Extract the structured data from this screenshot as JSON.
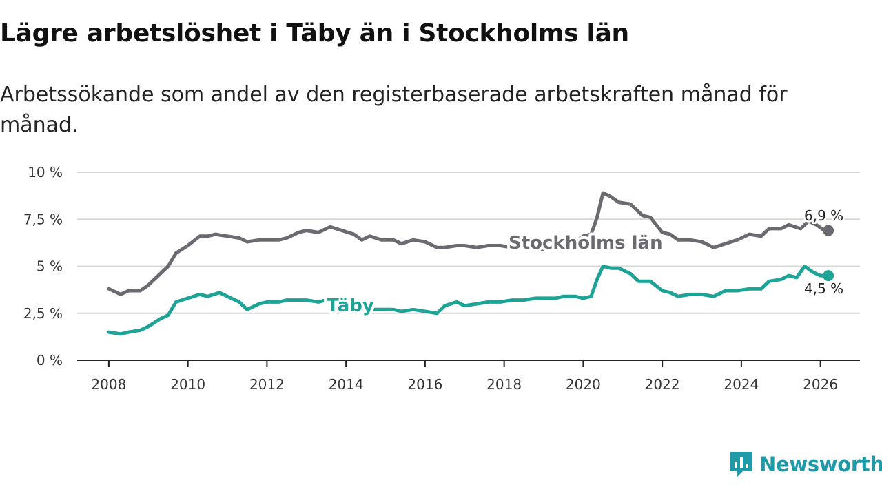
{
  "title": "Lägre arbetslöshet i Täby än i Stockholms län",
  "subtitle": "Arbetssökande som andel av den registerbaserade arbetskraften månad för månad.",
  "brand": "Newsworthy",
  "colors": {
    "stockholm": "#6b6a70",
    "taby": "#1ea397",
    "grid": "#d7d7d7",
    "axis": "#222222"
  },
  "chart_data": {
    "type": "line",
    "title": "Lägre arbetslöshet i Täby än i Stockholms län",
    "subtitle": "Arbetssökande som andel av den registerbaserade arbetskraften månad för månad.",
    "ylim": [
      0,
      10
    ],
    "xlim": [
      2007.2,
      2027.0
    ],
    "y_ticks": [
      0,
      2.5,
      5,
      7.5,
      10
    ],
    "y_tick_labels": [
      "0 %",
      "2,5 %",
      "5 %",
      "7,5 %",
      "10 %"
    ],
    "x_ticks": [
      2008,
      2010,
      2012,
      2014,
      2016,
      2018,
      2020,
      2022,
      2024,
      2026
    ],
    "x_tick_labels": [
      "2008",
      "2010",
      "2012",
      "2014",
      "2016",
      "2018",
      "2020",
      "2022",
      "2024",
      "2026"
    ],
    "grid": true,
    "series": [
      {
        "name": "Stockholms län",
        "end_label": "6,9 %",
        "points": [
          [
            2008.0,
            3.8
          ],
          [
            2008.3,
            3.5
          ],
          [
            2008.5,
            3.7
          ],
          [
            2008.8,
            3.7
          ],
          [
            2009.0,
            4.0
          ],
          [
            2009.3,
            4.6
          ],
          [
            2009.5,
            5.0
          ],
          [
            2009.7,
            5.7
          ],
          [
            2010.0,
            6.1
          ],
          [
            2010.3,
            6.6
          ],
          [
            2010.5,
            6.6
          ],
          [
            2010.7,
            6.7
          ],
          [
            2011.0,
            6.6
          ],
          [
            2011.3,
            6.5
          ],
          [
            2011.5,
            6.3
          ],
          [
            2011.8,
            6.4
          ],
          [
            2012.0,
            6.4
          ],
          [
            2012.3,
            6.4
          ],
          [
            2012.5,
            6.5
          ],
          [
            2012.8,
            6.8
          ],
          [
            2013.0,
            6.9
          ],
          [
            2013.3,
            6.8
          ],
          [
            2013.6,
            7.1
          ],
          [
            2013.9,
            6.9
          ],
          [
            2014.2,
            6.7
          ],
          [
            2014.4,
            6.4
          ],
          [
            2014.6,
            6.6
          ],
          [
            2014.9,
            6.4
          ],
          [
            2015.2,
            6.4
          ],
          [
            2015.4,
            6.2
          ],
          [
            2015.7,
            6.4
          ],
          [
            2016.0,
            6.3
          ],
          [
            2016.3,
            6.0
          ],
          [
            2016.5,
            6.0
          ],
          [
            2016.8,
            6.1
          ],
          [
            2017.0,
            6.1
          ],
          [
            2017.3,
            6.0
          ],
          [
            2017.6,
            6.1
          ],
          [
            2017.9,
            6.1
          ],
          [
            2018.2,
            6.0
          ],
          [
            2018.5,
            6.0
          ],
          [
            2018.8,
            5.9
          ],
          [
            2019.2,
            5.9
          ],
          [
            2019.5,
            6.0
          ],
          [
            2019.8,
            6.3
          ],
          [
            2020.0,
            6.6
          ],
          [
            2020.2,
            6.7
          ],
          [
            2020.35,
            7.6
          ],
          [
            2020.5,
            8.9
          ],
          [
            2020.7,
            8.7
          ],
          [
            2020.9,
            8.4
          ],
          [
            2021.2,
            8.3
          ],
          [
            2021.5,
            7.7
          ],
          [
            2021.7,
            7.6
          ],
          [
            2022.0,
            6.8
          ],
          [
            2022.2,
            6.7
          ],
          [
            2022.4,
            6.4
          ],
          [
            2022.7,
            6.4
          ],
          [
            2023.0,
            6.3
          ],
          [
            2023.3,
            6.0
          ],
          [
            2023.6,
            6.2
          ],
          [
            2023.9,
            6.4
          ],
          [
            2024.2,
            6.7
          ],
          [
            2024.5,
            6.6
          ],
          [
            2024.7,
            7.0
          ],
          [
            2025.0,
            7.0
          ],
          [
            2025.2,
            7.2
          ],
          [
            2025.5,
            7.0
          ],
          [
            2025.7,
            7.4
          ],
          [
            2025.9,
            7.2
          ],
          [
            2026.1,
            6.9
          ],
          [
            2026.2,
            6.9
          ]
        ]
      },
      {
        "name": "Täby",
        "end_label": "4,5 %",
        "points": [
          [
            2008.0,
            1.5
          ],
          [
            2008.3,
            1.4
          ],
          [
            2008.5,
            1.5
          ],
          [
            2008.8,
            1.6
          ],
          [
            2009.0,
            1.8
          ],
          [
            2009.3,
            2.2
          ],
          [
            2009.5,
            2.4
          ],
          [
            2009.7,
            3.1
          ],
          [
            2010.0,
            3.3
          ],
          [
            2010.3,
            3.5
          ],
          [
            2010.5,
            3.4
          ],
          [
            2010.8,
            3.6
          ],
          [
            2011.0,
            3.4
          ],
          [
            2011.3,
            3.1
          ],
          [
            2011.5,
            2.7
          ],
          [
            2011.8,
            3.0
          ],
          [
            2012.0,
            3.1
          ],
          [
            2012.3,
            3.1
          ],
          [
            2012.5,
            3.2
          ],
          [
            2012.8,
            3.2
          ],
          [
            2013.0,
            3.2
          ],
          [
            2013.3,
            3.1
          ],
          [
            2013.5,
            3.2
          ],
          [
            2013.8,
            3.0
          ],
          [
            2014.0,
            2.9
          ],
          [
            2014.3,
            2.8
          ],
          [
            2014.6,
            2.7
          ],
          [
            2014.9,
            2.7
          ],
          [
            2015.2,
            2.7
          ],
          [
            2015.4,
            2.6
          ],
          [
            2015.7,
            2.7
          ],
          [
            2016.0,
            2.6
          ],
          [
            2016.3,
            2.5
          ],
          [
            2016.5,
            2.9
          ],
          [
            2016.8,
            3.1
          ],
          [
            2017.0,
            2.9
          ],
          [
            2017.3,
            3.0
          ],
          [
            2017.6,
            3.1
          ],
          [
            2017.9,
            3.1
          ],
          [
            2018.2,
            3.2
          ],
          [
            2018.5,
            3.2
          ],
          [
            2018.8,
            3.3
          ],
          [
            2019.0,
            3.3
          ],
          [
            2019.3,
            3.3
          ],
          [
            2019.5,
            3.4
          ],
          [
            2019.8,
            3.4
          ],
          [
            2020.0,
            3.3
          ],
          [
            2020.2,
            3.4
          ],
          [
            2020.35,
            4.3
          ],
          [
            2020.5,
            5.0
          ],
          [
            2020.7,
            4.9
          ],
          [
            2020.9,
            4.9
          ],
          [
            2021.2,
            4.6
          ],
          [
            2021.4,
            4.2
          ],
          [
            2021.7,
            4.2
          ],
          [
            2022.0,
            3.7
          ],
          [
            2022.2,
            3.6
          ],
          [
            2022.4,
            3.4
          ],
          [
            2022.7,
            3.5
          ],
          [
            2023.0,
            3.5
          ],
          [
            2023.3,
            3.4
          ],
          [
            2023.6,
            3.7
          ],
          [
            2023.9,
            3.7
          ],
          [
            2024.2,
            3.8
          ],
          [
            2024.5,
            3.8
          ],
          [
            2024.7,
            4.2
          ],
          [
            2025.0,
            4.3
          ],
          [
            2025.2,
            4.5
          ],
          [
            2025.4,
            4.4
          ],
          [
            2025.6,
            5.0
          ],
          [
            2025.8,
            4.7
          ],
          [
            2026.0,
            4.5
          ],
          [
            2026.2,
            4.5
          ]
        ]
      }
    ]
  }
}
